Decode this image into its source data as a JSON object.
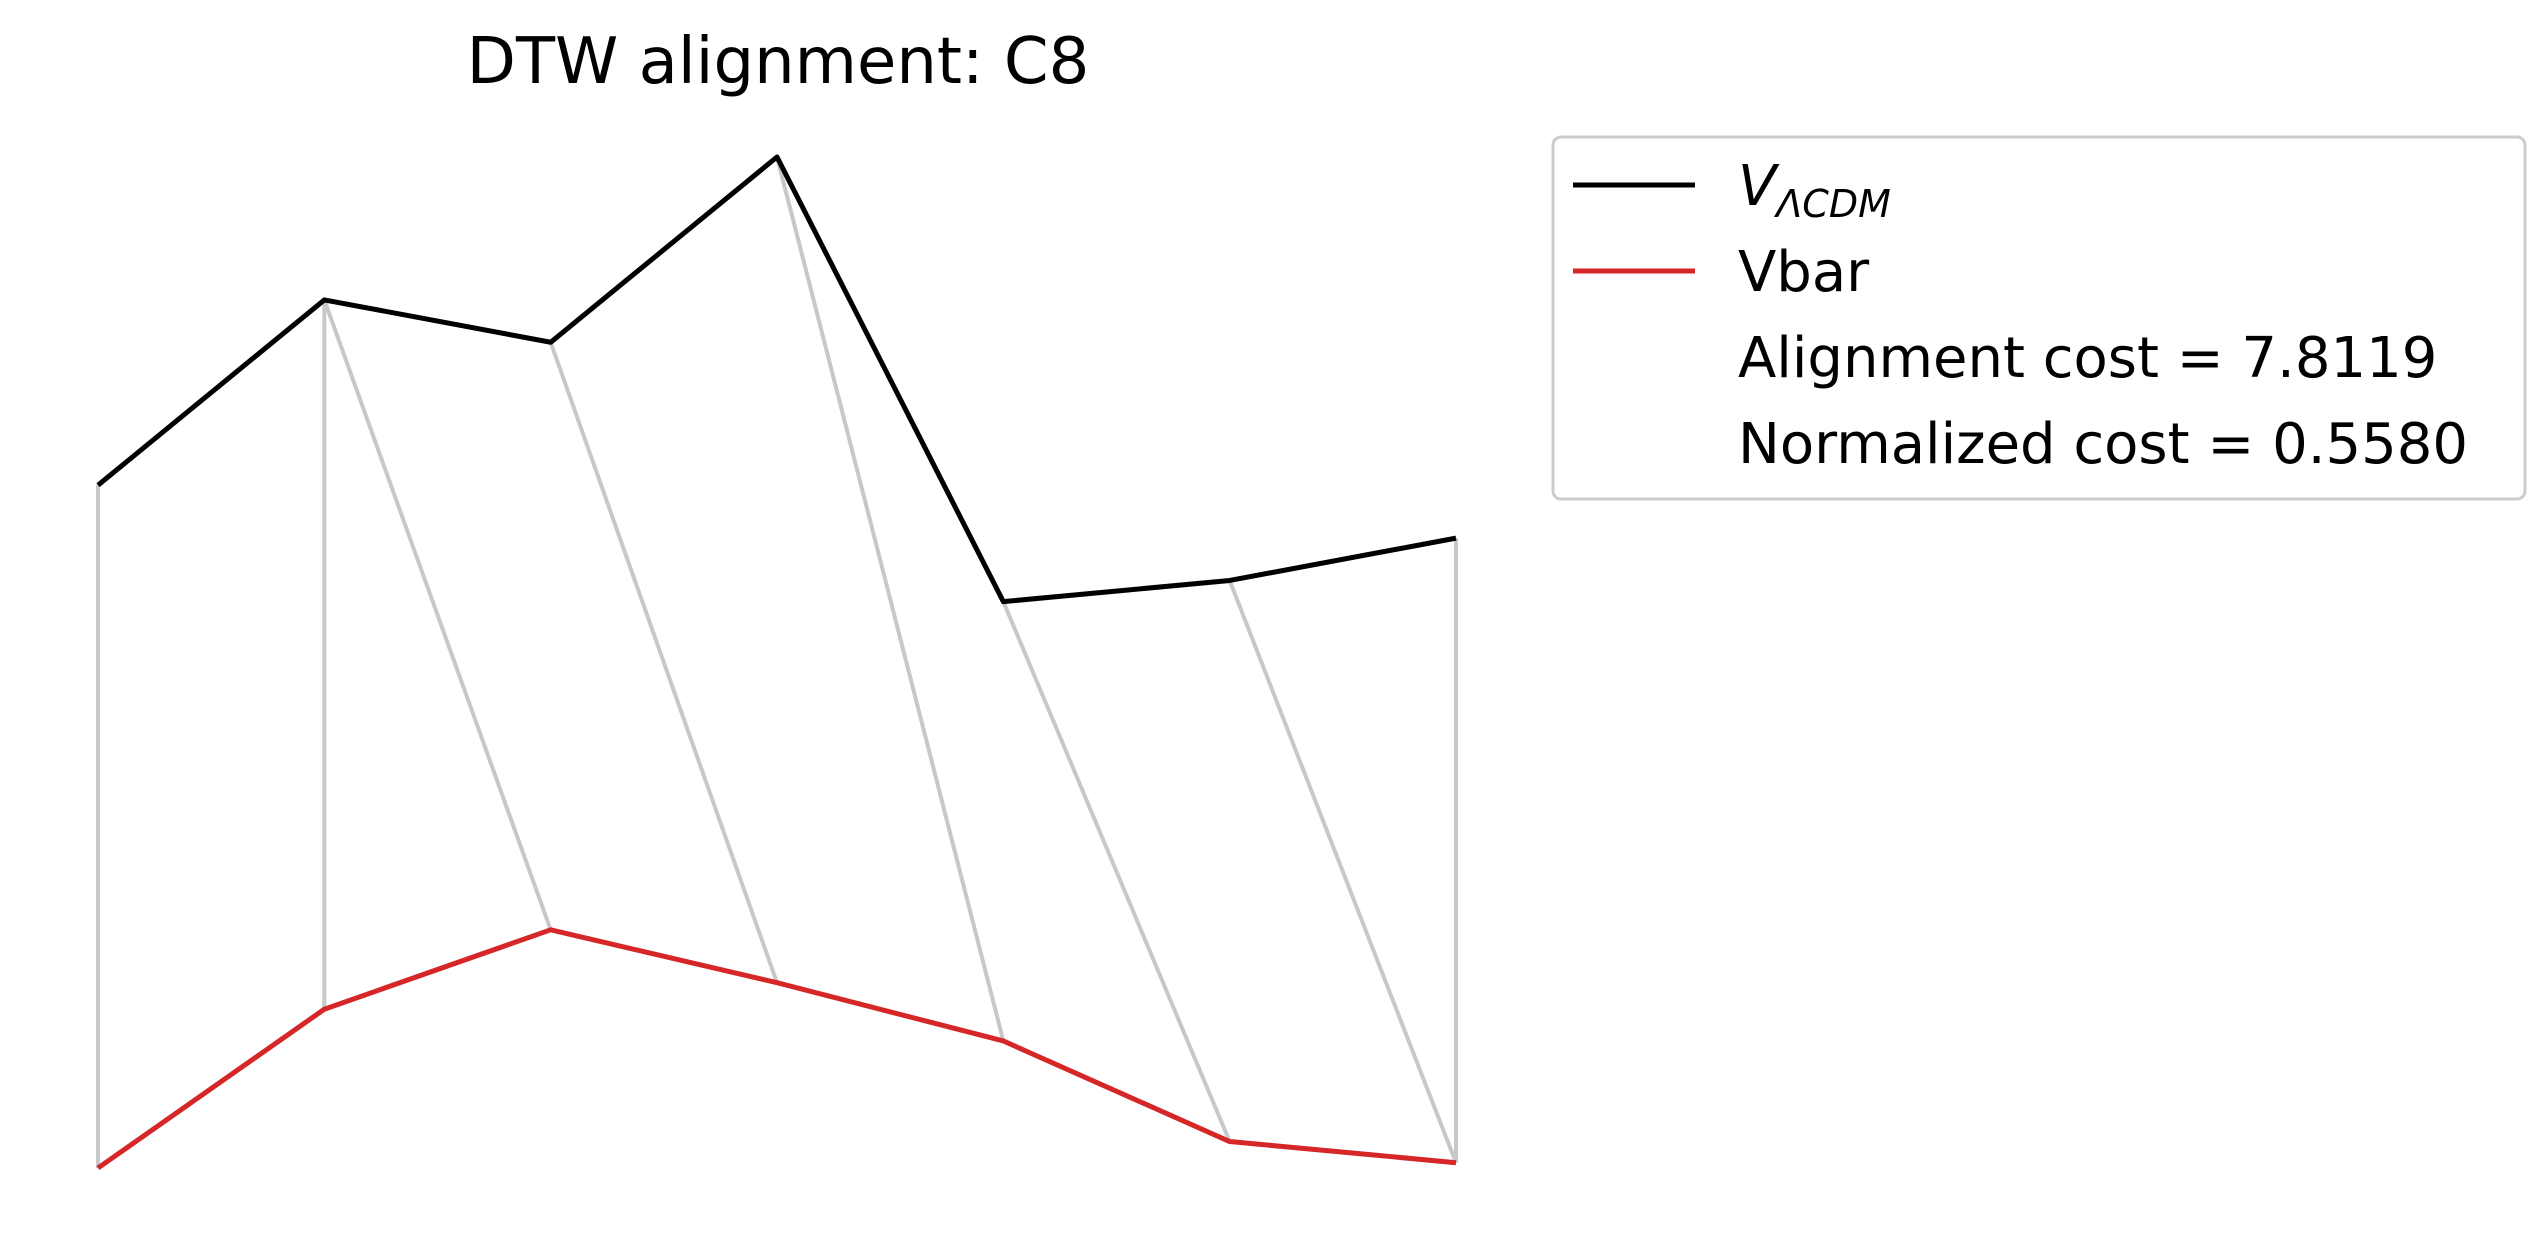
{
  "chart_data": {
    "type": "line",
    "title": "DTW alignment: C8",
    "xlabel": "",
    "ylabel": "",
    "axes_visible": false,
    "grid": false,
    "legend_position": "upper-right (outside plot)",
    "series": [
      {
        "name": "V_ΛCDM",
        "legend_label_main": "V",
        "legend_label_sub": "ΛCDM",
        "color": "#000000",
        "x": [
          0,
          1,
          2,
          3,
          4,
          5,
          6
        ],
        "y": [
          1.6,
          1.95,
          1.87,
          2.22,
          1.38,
          1.42,
          1.5
        ]
      },
      {
        "name": "Vbar",
        "color": "#d62728",
        "x": [
          0,
          1,
          2,
          3,
          4,
          5,
          6
        ],
        "y": [
          0.31,
          0.61,
          0.76,
          0.66,
          0.55,
          0.36,
          0.32
        ]
      }
    ],
    "alignment": {
      "color": "#c8c8c8",
      "pairs": [
        [
          0,
          0
        ],
        [
          1,
          1
        ],
        [
          1,
          2
        ],
        [
          2,
          3
        ],
        [
          3,
          4
        ],
        [
          4,
          5
        ],
        [
          5,
          6
        ],
        [
          6,
          6
        ]
      ]
    },
    "annotations": [
      "Alignment cost = 7.8119",
      "Normalized cost = 0.5580"
    ]
  }
}
